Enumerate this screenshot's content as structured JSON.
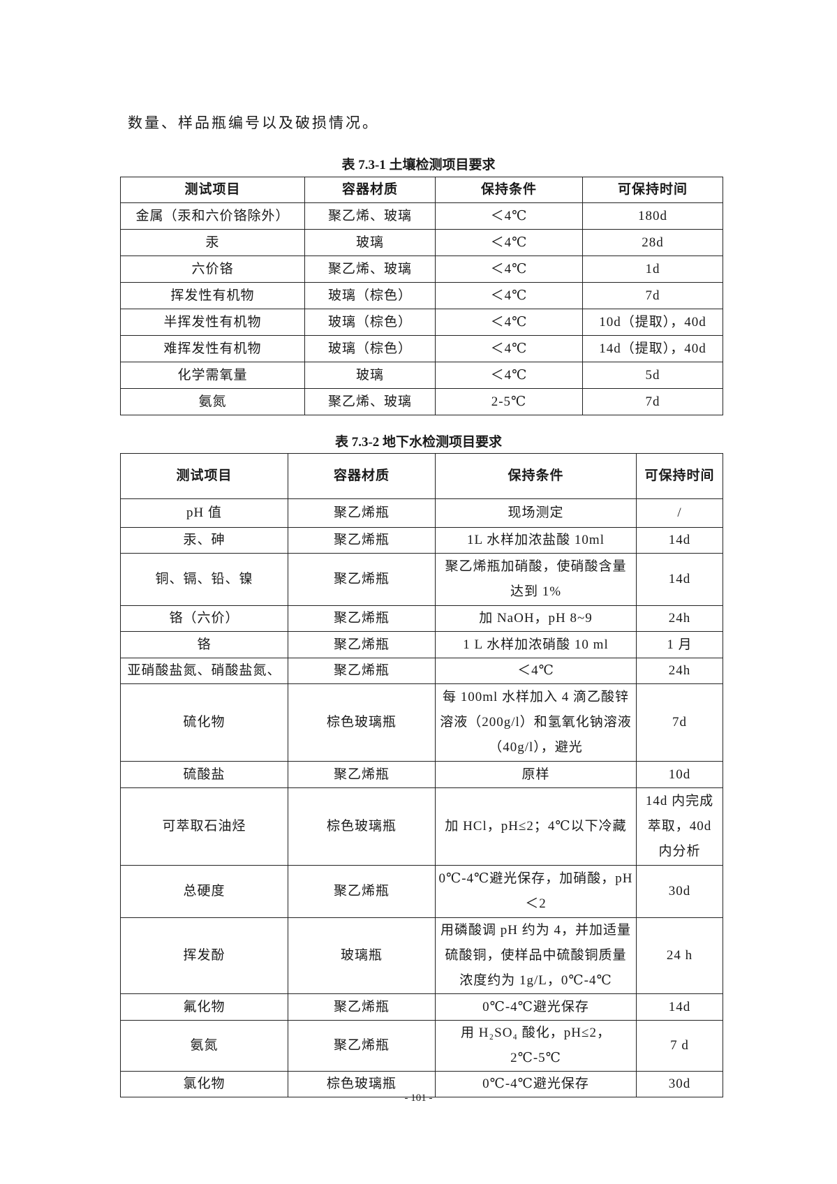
{
  "intro_text": "数量、样品瓶编号以及破损情况。",
  "table1": {
    "caption": "表 7.3-1 土壤检测项目要求",
    "headers": [
      "测试项目",
      "容器材质",
      "保持条件",
      "可保持时间"
    ],
    "rows": [
      [
        "金属（汞和六价铬除外）",
        "聚乙烯、玻璃",
        "＜4℃",
        "180d"
      ],
      [
        "汞",
        "玻璃",
        "＜4℃",
        "28d"
      ],
      [
        "六价铬",
        "聚乙烯、玻璃",
        "＜4℃",
        "1d"
      ],
      [
        "挥发性有机物",
        "玻璃（棕色）",
        "＜4℃",
        "7d"
      ],
      [
        "半挥发性有机物",
        "玻璃（棕色）",
        "＜4℃",
        "10d（提取），40d"
      ],
      [
        "难挥发性有机物",
        "玻璃（棕色）",
        "＜4℃",
        "14d（提取），40d"
      ],
      [
        "化学需氧量",
        "玻璃",
        "＜4℃",
        "5d"
      ],
      [
        "氨氮",
        "聚乙烯、玻璃",
        "2-5℃",
        "7d"
      ]
    ]
  },
  "table2": {
    "caption": "表 7.3-2 地下水检测项目要求",
    "headers": [
      "测试项目",
      "容器材质",
      "保持条件",
      "可保持时间"
    ],
    "rows": [
      [
        "pH 值",
        "聚乙烯瓶",
        "现场测定",
        "/"
      ],
      [
        "汞、砷",
        "聚乙烯瓶",
        "1L 水样加浓盐酸 10ml",
        "14d"
      ],
      [
        "铜、镉、铅、镍",
        "聚乙烯瓶",
        "聚乙烯瓶加硝酸，使硝酸含量达到 1%",
        "14d"
      ],
      [
        "铬（六价）",
        "聚乙烯瓶",
        "加 NaOH，pH 8~9",
        "24h"
      ],
      [
        "铬",
        "聚乙烯瓶",
        "1 L 水样加浓硝酸 10 ml",
        "1 月"
      ],
      [
        "亚硝酸盐氮、硝酸盐氮、",
        "聚乙烯瓶",
        "＜4℃",
        "24h"
      ],
      [
        "硫化物",
        "棕色玻璃瓶",
        "每 100ml 水样加入 4 滴乙酸锌溶液（200g/l）和氢氧化钠溶液（40g/l），避光",
        "7d"
      ],
      [
        "硫酸盐",
        "聚乙烯瓶",
        "原样",
        "10d"
      ],
      [
        "可萃取石油烃",
        "棕色玻璃瓶",
        "加 HCl，pH≤2；4℃以下冷藏",
        "14d 内完成萃取，40d 内分析"
      ],
      [
        "总硬度",
        "聚乙烯瓶",
        "0℃-4℃避光保存，加硝酸，pH＜2",
        "30d"
      ],
      [
        "挥发酚",
        "玻璃瓶",
        "用磷酸调 pH 约为 4，并加适量硫酸铜，使样品中硫酸铜质量浓度约为 1g/L，0℃-4℃",
        "24 h"
      ],
      [
        "氟化物",
        "聚乙烯瓶",
        "0℃-4℃避光保存",
        "14d"
      ],
      [
        "氨氮",
        "聚乙烯瓶",
        "用 H₂SO₄ 酸化，pH≤2，2℃-5℃",
        "7 d"
      ],
      [
        "氯化物",
        "棕色玻璃瓶",
        "0℃-4℃避光保存",
        "30d"
      ]
    ]
  },
  "page_number": "- 101 -"
}
